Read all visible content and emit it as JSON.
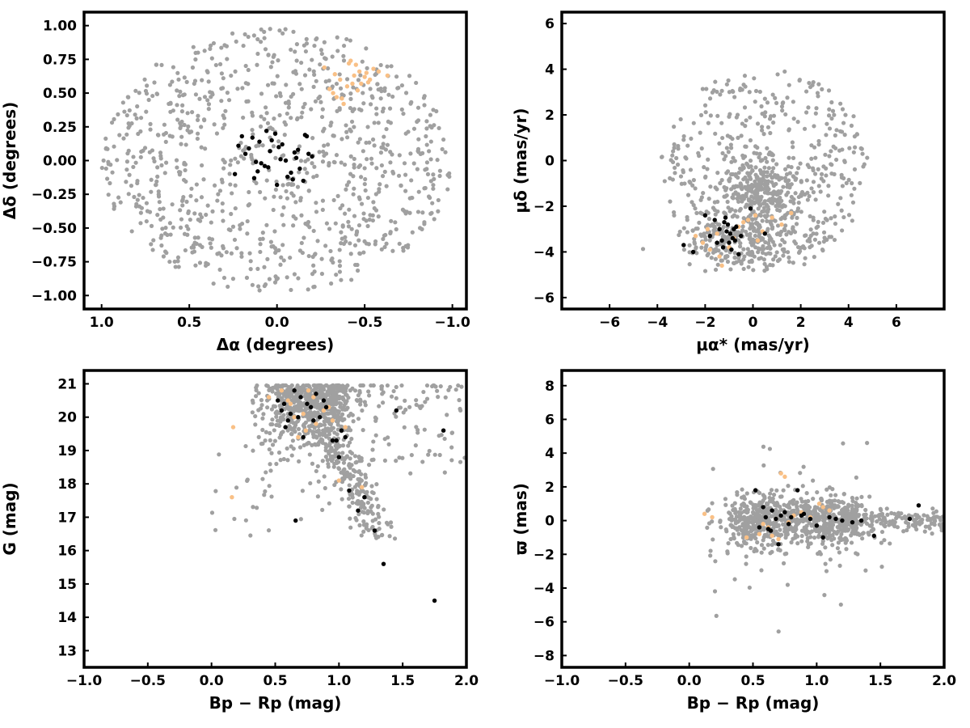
{
  "colors": {
    "field": "#a0a0a0",
    "orange": "#f9c086",
    "black": "#000000"
  },
  "chart_data": [
    {
      "type": "scatter",
      "xlabel": "Δα (degrees)",
      "ylabel": "Δδ (degrees)",
      "xlim": [
        1.1,
        -1.08
      ],
      "ylim": [
        -1.1,
        1.1
      ],
      "xticks": [
        1.0,
        0.5,
        0.0,
        -0.5,
        -1.0
      ],
      "xtick_labels": [
        "1.0",
        "0.5",
        "0.0",
        "−0.5",
        "−1.0"
      ],
      "yticks": [
        -1.0,
        -0.75,
        -0.5,
        -0.25,
        0.0,
        0.25,
        0.5,
        0.75,
        1.0
      ],
      "ytick_labels": [
        "−1.00",
        "−0.75",
        "−0.50",
        "−0.25",
        "0.00",
        "0.25",
        "0.50",
        "0.75",
        "1.00"
      ],
      "series": [
        {
          "color": "#a0a0a0",
          "field": {
            "kind": "disk",
            "cx": 0.0,
            "cy": 0.0,
            "rx": 1.0,
            "ry": 0.98,
            "n": 950,
            "seed": 11
          }
        },
        {
          "color": "#f9c086",
          "x": [
            -0.27,
            -0.33,
            -0.36,
            -0.4,
            -0.42,
            -0.45,
            -0.47,
            -0.5,
            -0.52,
            -0.55,
            -0.32,
            -0.37,
            -0.44,
            -0.48,
            -0.58,
            -0.3,
            -0.34,
            -0.41,
            -0.46,
            -0.51,
            -0.53,
            -0.38,
            -0.63,
            -0.43
          ],
          "y": [
            0.69,
            0.64,
            0.6,
            0.55,
            0.74,
            0.71,
            0.66,
            0.62,
            0.58,
            0.68,
            0.5,
            0.46,
            0.63,
            0.57,
            0.66,
            0.53,
            0.47,
            0.72,
            0.52,
            0.65,
            0.6,
            0.42,
            0.63,
            0.57
          ]
        },
        {
          "color": "#000000",
          "x": [
            -0.2,
            -0.18,
            -0.17,
            -0.15,
            -0.12,
            -0.1,
            -0.08,
            -0.06,
            -0.05,
            -0.03,
            -0.01,
            0.01,
            0.03,
            0.05,
            0.07,
            0.09,
            0.11,
            0.13,
            0.14,
            0.16,
            0.18,
            0.2,
            0.22,
            0.24,
            -0.13,
            -0.09,
            -0.02,
            0.06,
            -0.11,
            0.0,
            0.04,
            0.1,
            -0.16,
            0.12
          ],
          "y": [
            0.03,
            0.05,
            0.18,
            -0.15,
            0.08,
            0.06,
            -0.09,
            -0.12,
            0.0,
            0.12,
            0.1,
            0.2,
            0.15,
            -0.05,
            -0.04,
            -0.02,
            -0.08,
            -0.13,
            0.17,
            0.09,
            0.05,
            0.18,
            0.11,
            -0.1,
            -0.06,
            -0.14,
            0.01,
            0.22,
            0.02,
            -0.18,
            0.07,
            0.14,
            0.19,
            -0.01
          ]
        }
      ]
    },
    {
      "type": "scatter",
      "xlabel": "μα* (mas/yr)",
      "ylabel": "μδ (mas/yr)",
      "xlim": [
        -8,
        8
      ],
      "ylim": [
        -6.5,
        6.5
      ],
      "xticks": [
        -6,
        -4,
        -2,
        0,
        2,
        4,
        6
      ],
      "xtick_labels": [
        "−6",
        "−4",
        "−2",
        "0",
        "2",
        "4",
        "6"
      ],
      "yticks": [
        -6,
        -4,
        -2,
        0,
        2,
        4,
        6
      ],
      "ytick_labels": [
        "−6",
        "−4",
        "−2",
        "0",
        "2",
        "4",
        "6"
      ],
      "series": [
        {
          "color": "#a0a0a0",
          "field": {
            "kind": "pm",
            "seed": 23,
            "n": 950
          }
        },
        {
          "color": "#f9c086",
          "x": [
            -2.4,
            -2.1,
            -1.8,
            -1.5,
            -1.3,
            -1.0,
            -0.6,
            -0.2,
            0.1,
            0.4,
            0.8,
            1.2,
            1.6,
            -1.9,
            -1.4,
            -0.8,
            -0.4,
            0.2
          ],
          "y": [
            -3.3,
            -3.6,
            -3.9,
            -3.2,
            -4.6,
            -3.8,
            -2.9,
            -2.6,
            -2.4,
            -3.1,
            -2.5,
            -2.8,
            -2.3,
            -3.0,
            -4.2,
            -3.4,
            -2.7,
            -3.5
          ]
        },
        {
          "color": "#000000",
          "x": [
            -2.9,
            -2.5,
            -2.0,
            -1.8,
            -1.6,
            -1.4,
            -1.3,
            -1.2,
            -1.1,
            -1.05,
            -1.0,
            -0.95,
            -0.9,
            -0.85,
            -0.8,
            -0.7,
            -0.6,
            -0.5,
            -1.15,
            -1.25,
            0.5,
            -0.1,
            -1.5,
            -0.75
          ],
          "y": [
            -3.7,
            -4.0,
            -2.4,
            -3.3,
            -2.6,
            -3.0,
            -3.5,
            -2.7,
            -3.1,
            -2.8,
            -3.6,
            -3.2,
            -3.9,
            -3.4,
            -3.0,
            -2.9,
            -4.1,
            -3.3,
            -2.5,
            -3.8,
            -3.2,
            -2.1,
            -3.6,
            -3.5
          ]
        }
      ]
    },
    {
      "type": "scatter",
      "xlabel": "Bp − Rp (mag)",
      "ylabel": "G (mag)",
      "xlim": [
        -1.0,
        2.0
      ],
      "ylim": [
        12.5,
        21.4
      ],
      "xticks": [
        -1.0,
        -0.5,
        0.0,
        0.5,
        1.0,
        1.5,
        2.0
      ],
      "xtick_labels": [
        "−1.0",
        "−0.5",
        "0.0",
        "0.5",
        "1.0",
        "1.5",
        "2.0"
      ],
      "yticks": [
        13,
        14,
        15,
        16,
        17,
        18,
        19,
        20,
        21
      ],
      "ytick_labels": [
        "13",
        "14",
        "15",
        "16",
        "17",
        "18",
        "19",
        "20",
        "21"
      ],
      "series": [
        {
          "color": "#a0a0a0",
          "field": {
            "kind": "cmd",
            "seed": 37,
            "n": 1000
          }
        },
        {
          "color": "#f9c086",
          "x": [
            0.17,
            0.16,
            0.45,
            0.55,
            0.62,
            0.68,
            0.72,
            0.76,
            0.82,
            0.88,
            0.95,
            1.05,
            0.6,
            0.74,
            0.92,
            1.0,
            1.18,
            0.65,
            0.8
          ],
          "y": [
            19.7,
            17.6,
            20.6,
            20.8,
            20.4,
            19.4,
            20.1,
            20.8,
            19.8,
            20.2,
            19.9,
            19.7,
            20.5,
            19.6,
            20.3,
            18.1,
            17.9,
            20.0,
            20.6
          ]
        },
        {
          "color": "#000000",
          "x": [
            0.52,
            0.55,
            0.58,
            0.6,
            0.62,
            0.65,
            0.68,
            0.7,
            0.72,
            0.75,
            0.78,
            0.8,
            0.82,
            0.85,
            0.9,
            0.95,
            1.0,
            1.02,
            1.05,
            1.08,
            1.15,
            1.2,
            1.28,
            1.35,
            1.45,
            1.75,
            1.82,
            0.66,
            0.88,
            0.57,
            0.98
          ],
          "y": [
            20.5,
            20.2,
            19.7,
            19.9,
            20.1,
            20.8,
            20.0,
            20.6,
            19.4,
            20.4,
            20.3,
            19.9,
            20.7,
            20.0,
            20.3,
            19.3,
            18.8,
            19.6,
            19.4,
            17.8,
            17.2,
            17.6,
            16.6,
            15.6,
            20.2,
            14.5,
            19.6,
            16.9,
            20.5,
            20.4,
            19.3
          ]
        }
      ]
    },
    {
      "type": "scatter",
      "xlabel": "Bp − Rp (mag)",
      "ylabel": "ϖ (mas)",
      "xlim": [
        -1.0,
        2.0
      ],
      "ylim": [
        -8.7,
        8.9
      ],
      "xticks": [
        -1.0,
        -0.5,
        0.0,
        0.5,
        1.0,
        1.5,
        2.0
      ],
      "xtick_labels": [
        "−1.0",
        "−0.5",
        "0.0",
        "0.5",
        "1.0",
        "1.5",
        "2.0"
      ],
      "yticks": [
        -8,
        -6,
        -4,
        -2,
        0,
        2,
        4,
        6,
        8
      ],
      "ytick_labels": [
        "−8",
        "−6",
        "−4",
        "−2",
        "0",
        "2",
        "4",
        "6",
        "8"
      ],
      "series": [
        {
          "color": "#a0a0a0",
          "field": {
            "kind": "plx",
            "seed": 53,
            "n": 1000
          }
        },
        {
          "color": "#f9c086",
          "x": [
            0.12,
            0.18,
            0.45,
            0.55,
            0.62,
            0.68,
            0.72,
            0.75,
            0.78,
            0.82,
            0.88,
            0.95,
            1.02,
            1.05,
            1.1,
            0.58,
            0.65,
            0.7
          ],
          "y": [
            0.4,
            0.2,
            -1.0,
            -0.8,
            -0.4,
            0.1,
            2.8,
            2.6,
            -0.1,
            0.3,
            0.5,
            0.2,
            1.0,
            0.8,
            0.6,
            -0.2,
            -0.9,
            -1.1
          ]
        },
        {
          "color": "#000000",
          "x": [
            0.52,
            0.55,
            0.58,
            0.6,
            0.62,
            0.65,
            0.68,
            0.7,
            0.72,
            0.75,
            0.78,
            0.8,
            0.85,
            0.9,
            0.95,
            1.0,
            1.05,
            1.1,
            1.15,
            1.2,
            1.28,
            1.35,
            1.45,
            1.73,
            1.8,
            0.88,
            0.64
          ],
          "y": [
            1.8,
            -0.4,
            0.8,
            0.2,
            -0.5,
            0.6,
            0.1,
            -1.4,
            0.3,
            0.5,
            -0.2,
            0.2,
            1.8,
            0.4,
            0.1,
            -0.3,
            -1.0,
            0.2,
            0.1,
            0.0,
            -0.1,
            0.0,
            -0.9,
            0.1,
            0.9,
            0.3,
            -0.6
          ]
        }
      ]
    }
  ]
}
